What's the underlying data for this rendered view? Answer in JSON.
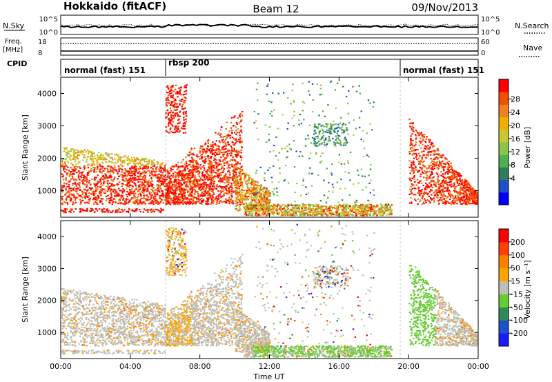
{
  "header": {
    "station": "Hokkaido (fitACF)",
    "beam": "Beam 12",
    "date": "09/Nov/2013"
  },
  "top_panels": {
    "nsky_label": "N.Sky",
    "nsky_ticks": [
      "10^5",
      "10^0"
    ],
    "nsearch_label": "N.Search",
    "nsearch_ticks": [
      "10^5",
      "10^0"
    ],
    "freq_label_line1": "Freq.",
    "freq_label_line2": "[MHz]",
    "freq_ticks": [
      "18",
      "8"
    ],
    "nave_label": "Nave",
    "nave_ticks": [
      "60",
      "0"
    ],
    "cpid_label": "CPID"
  },
  "cpid_segments": [
    {
      "label": "normal (fast) 151",
      "start_hour": 0,
      "end_hour": 6
    },
    {
      "label": "rbsp 200",
      "start_hour": 6,
      "end_hour": 19.5
    },
    {
      "label": "normal (fast) 151",
      "start_hour": 19.5,
      "end_hour": 24
    }
  ],
  "chart_data": [
    {
      "type": "heatmap",
      "panel": "power",
      "ylabel": "Slant Range [km]",
      "xlabel": "Time UT",
      "x_ticks": [
        "00:00",
        "04:00",
        "08:00",
        "12:00",
        "16:00",
        "20:00",
        "00:00"
      ],
      "x_range_hours": [
        0,
        24
      ],
      "y_ticks": [
        1000,
        2000,
        3000,
        4000
      ],
      "y_range_km": [
        180,
        4500
      ],
      "colorbar_label": "Power [dB]",
      "colorbar_ticks": [
        "28",
        "24",
        "20",
        "16",
        "12",
        "8",
        "4"
      ],
      "colorbar_colors": [
        "#0000ff",
        "#1e50c8",
        "#2e7d5e",
        "#4caf50",
        "#8ac44a",
        "#c8c832",
        "#f0b000",
        "#f08020",
        "#f05000",
        "#ff0000"
      ]
    },
    {
      "type": "heatmap",
      "panel": "velocity",
      "ylabel": "Slant Range [km]",
      "xlabel": "Time UT",
      "x_ticks": [
        "00:00",
        "04:00",
        "08:00",
        "12:00",
        "16:00",
        "20:00",
        "00:00"
      ],
      "x_range_hours": [
        0,
        24
      ],
      "y_ticks": [
        1000,
        2000,
        3000,
        4000
      ],
      "y_range_km": [
        180,
        4500
      ],
      "colorbar_label": "Velocity [m s⁻¹]",
      "colorbar_ticks": [
        "200",
        "100",
        "50",
        "15",
        "-15",
        "-50",
        "-100",
        "-200"
      ],
      "colorbar_colors": [
        "#1a1aff",
        "#1e50c8",
        "#2e8b57",
        "#66cc33",
        "#bfbfb8",
        "#ffa500",
        "#ff7f00",
        "#ff4000",
        "#ff0000"
      ]
    }
  ],
  "colors": {
    "ground_scatter": "#bfbfb8",
    "axis": "#000000"
  }
}
